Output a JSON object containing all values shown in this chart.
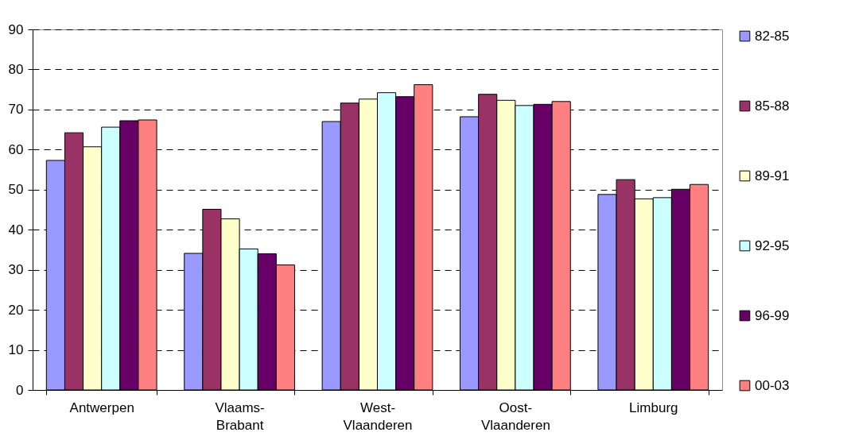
{
  "chart_data": {
    "type": "bar",
    "categories": [
      "Antwerpen",
      "Vlaams-Brabant",
      "West-Vlaanderen",
      "Oost-Vlaanderen",
      "Limburg"
    ],
    "series": [
      {
        "name": "82-85",
        "color": "#9999ff",
        "values": [
          57.3,
          34.1,
          67.0,
          68.2,
          48.8
        ]
      },
      {
        "name": "85-88",
        "color": "#993366",
        "values": [
          64.2,
          45.1,
          71.6,
          73.8,
          52.5
        ]
      },
      {
        "name": "89-91",
        "color": "#ffffcc",
        "values": [
          60.7,
          42.7,
          72.6,
          72.3,
          47.7
        ]
      },
      {
        "name": "92-95",
        "color": "#ccffff",
        "values": [
          65.6,
          35.2,
          74.2,
          71.0,
          48.0
        ]
      },
      {
        "name": "96-99",
        "color": "#660066",
        "values": [
          67.2,
          34.0,
          73.2,
          71.3,
          50.1
        ]
      },
      {
        "name": "00-03",
        "color": "#ff8080",
        "values": [
          67.4,
          31.2,
          76.2,
          72.0,
          51.3
        ]
      }
    ],
    "ylim": [
      0,
      90
    ],
    "yticks": [
      0,
      10,
      20,
      30,
      40,
      50,
      60,
      70,
      80,
      90
    ],
    "grid": "y",
    "legend": "right"
  }
}
